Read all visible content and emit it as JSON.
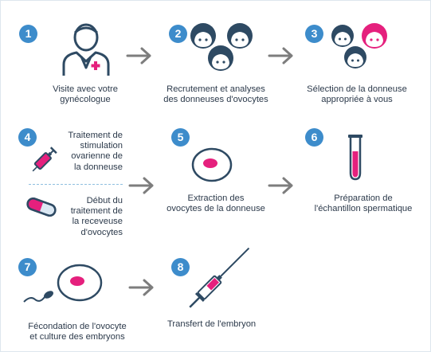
{
  "colors": {
    "badge": "#3d8ccb",
    "navy": "#2e4a63",
    "pink": "#e5207d",
    "arrow": "#7d7d7d",
    "light": "#dbe8f3"
  },
  "steps": [
    {
      "number": "1",
      "icon": "doctor-icon",
      "lines": [
        "Visite avec votre",
        "gynécologue"
      ]
    },
    {
      "number": "2",
      "icon": "donor-faces-icon",
      "lines": [
        "Recrutement et analyses",
        "des donneuses d'ovocytes"
      ]
    },
    {
      "number": "3",
      "icon": "selected-donor-icon",
      "lines": [
        "Sélection de la donneuse",
        "appropriée à vous"
      ]
    },
    {
      "number": "4",
      "a": {
        "icon": "syringe-icon",
        "lines": [
          "Traitement de",
          "stimulation",
          "ovarienne de",
          "la donneuse"
        ]
      },
      "b": {
        "icon": "pill-icon",
        "lines": [
          "Début du",
          "traitement de",
          "la receveuse",
          "d'ovocytes"
        ]
      }
    },
    {
      "number": "5",
      "icon": "oocyte-icon",
      "lines": [
        "Extraction des",
        "ovocytes de la donneuse"
      ]
    },
    {
      "number": "6",
      "icon": "test-tube-icon",
      "lines": [
        "Préparation de",
        "l'échantillon spermatique"
      ]
    },
    {
      "number": "7",
      "icon": "fertilization-icon",
      "lines": [
        "Fécondation de l'ovocyte",
        "et culture des embryons"
      ]
    },
    {
      "number": "8",
      "icon": "embryo-transfer-syringe-icon",
      "lines": [
        "Transfert de l'embryon"
      ]
    }
  ]
}
